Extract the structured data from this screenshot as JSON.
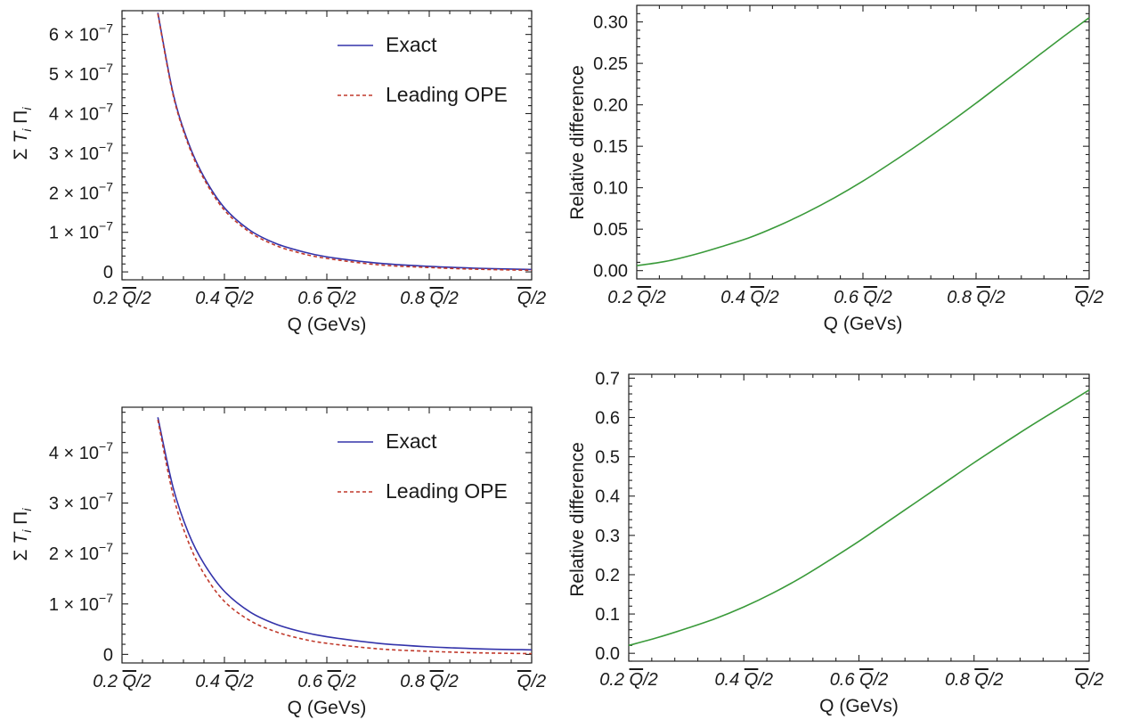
{
  "colors": {
    "exact": "#3333aa",
    "ope": "#c0392b",
    "relative": "#3a9a3a"
  },
  "chart_data": [
    {
      "type": "line",
      "panel": "top-left",
      "xlabel": "Q (GeVs)",
      "ylabel": "Σ T_i Π_i",
      "xlim": [
        0.2,
        1.0
      ],
      "ylim": [
        -2e-08,
        6.6e-07
      ],
      "x_ticks": [
        {
          "value": 0.2,
          "prefix": "0.2 ",
          "qbar": "Q",
          "suffix": "/2"
        },
        {
          "value": 0.4,
          "prefix": "0.4 ",
          "qbar": "Q",
          "suffix": "/2"
        },
        {
          "value": 0.6,
          "prefix": "0.6 ",
          "qbar": "Q",
          "suffix": "/2"
        },
        {
          "value": 0.8,
          "prefix": "0.8 ",
          "qbar": "Q",
          "suffix": "/2"
        },
        {
          "value": 1.0,
          "prefix": "",
          "qbar": "Q",
          "suffix": "/2"
        }
      ],
      "y_ticks": [
        {
          "value": 0,
          "mant": "0",
          "exp": ""
        },
        {
          "value": 1e-07,
          "mant": "1 × 10",
          "exp": "−7"
        },
        {
          "value": 2e-07,
          "mant": "2 × 10",
          "exp": "−7"
        },
        {
          "value": 3e-07,
          "mant": "3 × 10",
          "exp": "−7"
        },
        {
          "value": 4e-07,
          "mant": "4 × 10",
          "exp": "−7"
        },
        {
          "value": 5e-07,
          "mant": "5 × 10",
          "exp": "−7"
        },
        {
          "value": 6e-07,
          "mant": "6 × 10",
          "exp": "−7"
        }
      ],
      "legend_position": "top-right",
      "series": [
        {
          "name": "Exact",
          "style": "solid",
          "x": [
            0.27,
            0.3,
            0.33,
            0.36,
            0.4,
            0.45,
            0.5,
            0.55,
            0.6,
            0.7,
            0.8,
            0.9,
            1.0
          ],
          "y": [
            6.55e-07,
            4.5e-07,
            3.25e-07,
            2.4e-07,
            1.62e-07,
            1.05e-07,
            7.2e-08,
            5.2e-08,
            3.8e-08,
            2.2e-08,
            1.4e-08,
            9e-09,
            6e-09
          ]
        },
        {
          "name": "Leading OPE",
          "style": "dashed",
          "x": [
            0.27,
            0.3,
            0.33,
            0.36,
            0.4,
            0.45,
            0.5,
            0.55,
            0.6,
            0.7,
            0.8,
            0.9,
            1.0
          ],
          "y": [
            6.52e-07,
            4.46e-07,
            3.2e-07,
            2.35e-07,
            1.56e-07,
            1e-07,
            6.7e-08,
            4.7e-08,
            3.4e-08,
            1.8e-08,
            1.1e-08,
            6.5e-09,
            4e-09
          ]
        }
      ]
    },
    {
      "type": "line",
      "panel": "top-right",
      "xlabel": "Q (GeVs)",
      "ylabel": "Relative difference",
      "xlim": [
        0.2,
        1.0
      ],
      "ylim": [
        -0.01,
        0.32
      ],
      "x_ticks": [
        {
          "value": 0.2,
          "prefix": "0.2 ",
          "qbar": "Q",
          "suffix": "/2"
        },
        {
          "value": 0.4,
          "prefix": "0.4 ",
          "qbar": "Q",
          "suffix": "/2"
        },
        {
          "value": 0.6,
          "prefix": "0.6 ",
          "qbar": "Q",
          "suffix": "/2"
        },
        {
          "value": 0.8,
          "prefix": "0.8 ",
          "qbar": "Q",
          "suffix": "/2"
        },
        {
          "value": 1.0,
          "prefix": "",
          "qbar": "Q",
          "suffix": "/2"
        }
      ],
      "y_ticks": [
        {
          "value": 0.0,
          "mant": "0.00",
          "exp": ""
        },
        {
          "value": 0.05,
          "mant": "0.05",
          "exp": ""
        },
        {
          "value": 0.1,
          "mant": "0.10",
          "exp": ""
        },
        {
          "value": 0.15,
          "mant": "0.15",
          "exp": ""
        },
        {
          "value": 0.2,
          "mant": "0.20",
          "exp": ""
        },
        {
          "value": 0.25,
          "mant": "0.25",
          "exp": ""
        },
        {
          "value": 0.3,
          "mant": "0.30",
          "exp": ""
        }
      ],
      "series": [
        {
          "style": "solid",
          "x": [
            0.2,
            0.25,
            0.3,
            0.35,
            0.4,
            0.45,
            0.5,
            0.55,
            0.6,
            0.65,
            0.7,
            0.75,
            0.8,
            0.85,
            0.9,
            0.95,
            1.0
          ],
          "y": [
            0.006,
            0.011,
            0.019,
            0.029,
            0.04,
            0.054,
            0.07,
            0.088,
            0.108,
            0.13,
            0.153,
            0.177,
            0.202,
            0.228,
            0.254,
            0.28,
            0.305
          ]
        }
      ]
    },
    {
      "type": "line",
      "panel": "bottom-left",
      "xlabel": "Q (GeVs)",
      "ylabel": "Σ T_i Π_i",
      "xlim": [
        0.2,
        1.0
      ],
      "ylim": [
        -1.7e-08,
        4.9e-07
      ],
      "x_ticks": [
        {
          "value": 0.2,
          "prefix": "0.2 ",
          "qbar": "Q",
          "suffix": "/2"
        },
        {
          "value": 0.4,
          "prefix": "0.4 ",
          "qbar": "Q",
          "suffix": "/2"
        },
        {
          "value": 0.6,
          "prefix": "0.6 ",
          "qbar": "Q",
          "suffix": "/2"
        },
        {
          "value": 0.8,
          "prefix": "0.8 ",
          "qbar": "Q",
          "suffix": "/2"
        },
        {
          "value": 1.0,
          "prefix": "",
          "qbar": "Q",
          "suffix": "/2"
        }
      ],
      "y_ticks": [
        {
          "value": 0,
          "mant": "0",
          "exp": ""
        },
        {
          "value": 1e-07,
          "mant": "1 × 10",
          "exp": "−7"
        },
        {
          "value": 2e-07,
          "mant": "2 × 10",
          "exp": "−7"
        },
        {
          "value": 3e-07,
          "mant": "3 × 10",
          "exp": "−7"
        },
        {
          "value": 4e-07,
          "mant": "4 × 10",
          "exp": "−7"
        }
      ],
      "legend_position": "top-right",
      "series": [
        {
          "name": "Exact",
          "style": "solid",
          "x": [
            0.27,
            0.3,
            0.33,
            0.36,
            0.4,
            0.45,
            0.5,
            0.55,
            0.6,
            0.7,
            0.8,
            0.9,
            1.0
          ],
          "y": [
            4.7e-07,
            3.3e-07,
            2.4e-07,
            1.8e-07,
            1.25e-07,
            8.4e-08,
            6e-08,
            4.5e-08,
            3.5e-08,
            2.2e-08,
            1.5e-08,
            1.1e-08,
            9e-09
          ]
        },
        {
          "name": "Leading OPE",
          "style": "dashed",
          "x": [
            0.27,
            0.3,
            0.33,
            0.36,
            0.4,
            0.45,
            0.5,
            0.55,
            0.6,
            0.7,
            0.8,
            0.9,
            1.0
          ],
          "y": [
            4.65e-07,
            3.15e-07,
            2.22e-07,
            1.6e-07,
            1.05e-07,
            6.7e-08,
            4.5e-08,
            3.1e-08,
            2.2e-08,
            1.1e-08,
            6e-09,
            3e-09,
            1.5e-09
          ]
        }
      ]
    },
    {
      "type": "line",
      "panel": "bottom-right",
      "xlabel": "Q (GeVs)",
      "ylabel": "Relative difference",
      "xlim": [
        0.2,
        1.0
      ],
      "ylim": [
        -0.02,
        0.71
      ],
      "x_ticks": [
        {
          "value": 0.2,
          "prefix": "0.2 ",
          "qbar": "Q",
          "suffix": "/2"
        },
        {
          "value": 0.4,
          "prefix": "0.4 ",
          "qbar": "Q",
          "suffix": "/2"
        },
        {
          "value": 0.6,
          "prefix": "0.6 ",
          "qbar": "Q",
          "suffix": "/2"
        },
        {
          "value": 0.8,
          "prefix": "0.8 ",
          "qbar": "Q",
          "suffix": "/2"
        },
        {
          "value": 1.0,
          "prefix": "",
          "qbar": "Q",
          "suffix": "/2"
        }
      ],
      "y_ticks": [
        {
          "value": 0.0,
          "mant": "0.0",
          "exp": ""
        },
        {
          "value": 0.1,
          "mant": "0.1",
          "exp": ""
        },
        {
          "value": 0.2,
          "mant": "0.2",
          "exp": ""
        },
        {
          "value": 0.3,
          "mant": "0.3",
          "exp": ""
        },
        {
          "value": 0.4,
          "mant": "0.4",
          "exp": ""
        },
        {
          "value": 0.5,
          "mant": "0.5",
          "exp": ""
        },
        {
          "value": 0.6,
          "mant": "0.6",
          "exp": ""
        },
        {
          "value": 0.7,
          "mant": "0.7",
          "exp": ""
        }
      ],
      "series": [
        {
          "style": "solid",
          "x": [
            0.2,
            0.25,
            0.3,
            0.35,
            0.4,
            0.45,
            0.5,
            0.55,
            0.6,
            0.65,
            0.7,
            0.75,
            0.8,
            0.85,
            0.9,
            0.95,
            1.0
          ],
          "y": [
            0.02,
            0.04,
            0.063,
            0.088,
            0.118,
            0.153,
            0.193,
            0.238,
            0.285,
            0.335,
            0.385,
            0.435,
            0.485,
            0.533,
            0.58,
            0.625,
            0.67
          ]
        }
      ]
    }
  ]
}
